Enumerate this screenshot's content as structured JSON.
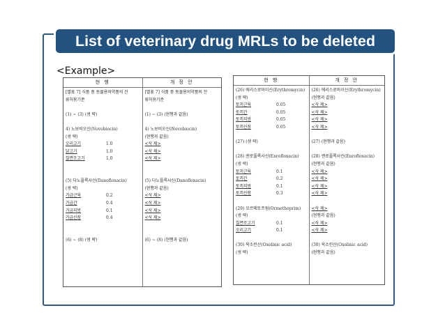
{
  "title": "List of veterinary drug MRLs to be deleted",
  "example_label": "<Example>",
  "colors": {
    "title_bg": "#22527f",
    "frame": "#2e5a88"
  },
  "documents": [
    {
      "headers": [
        "현 행",
        "개 정 안"
      ],
      "left": [
        {
          "t": "[별표 7] 식품 중 동물용의약품의 잔",
          "ul": false
        },
        {
          "t": "류허용기준",
          "ul": false
        },
        {
          "t": "",
          "ul": false
        },
        {
          "t": "(1) ~ (3) (생  략)",
          "ul": false
        },
        {
          "t": "",
          "ul": false
        },
        {
          "t": "4) 노보비오신(Novobiocin)",
          "ul": false
        },
        {
          "t": "(생  략)",
          "ul": false
        },
        {
          "t": "오리고기",
          "v": "1.0",
          "ul": true
        },
        {
          "t": "닭고기",
          "v": "1.0",
          "ul": true
        },
        {
          "t": "칠면조고기",
          "v": "1.0",
          "ul": true
        },
        {
          "t": "",
          "ul": false
        },
        {
          "t": "",
          "ul": false
        },
        {
          "t": "(5) 다노플록사신(Danofloxacin)",
          "ul": false
        },
        {
          "t": "(생  략)",
          "ul": false
        },
        {
          "t": "가금근육",
          "v": "0.2",
          "ul": true
        },
        {
          "t": "가금간",
          "v": "0.4",
          "ul": true
        },
        {
          "t": "가금지방",
          "v": "0.1",
          "ul": true
        },
        {
          "t": "가금신장",
          "v": "0.4",
          "ul": true
        },
        {
          "t": "",
          "ul": false
        },
        {
          "t": "",
          "ul": false
        },
        {
          "t": "(6) ~ (8) (생  략)",
          "ul": false
        }
      ],
      "right": [
        {
          "t": "[별표 7] 식품 중 동물용의약품의 잔",
          "ul": false
        },
        {
          "t": "류허용기준",
          "ul": false
        },
        {
          "t": "",
          "ul": false
        },
        {
          "t": "(1) ~ (3) (현행과 같음)",
          "ul": false
        },
        {
          "t": "",
          "ul": false
        },
        {
          "t": "4) 노보비오신(Novobiocin)",
          "ul": false
        },
        {
          "t": "(현행과 같음)",
          "ul": false
        },
        {
          "t": "<삭  제>",
          "ul": true
        },
        {
          "t": "<삭  제>",
          "ul": true
        },
        {
          "t": "<삭  제>",
          "ul": true
        },
        {
          "t": "",
          "ul": false
        },
        {
          "t": "",
          "ul": false
        },
        {
          "t": "(5) 다노플록사신(Danofloxacin)",
          "ul": false
        },
        {
          "t": "(현행과 같음)",
          "ul": false
        },
        {
          "t": "<삭  제>",
          "ul": true
        },
        {
          "t": "<삭  제>",
          "ul": true
        },
        {
          "t": "<삭  제>",
          "ul": true
        },
        {
          "t": "<삭  제>",
          "ul": true
        },
        {
          "t": "",
          "ul": false
        },
        {
          "t": "",
          "ul": false
        },
        {
          "t": "(6) ~ (8) (현행과 같음)",
          "ul": false
        }
      ]
    },
    {
      "headers": [
        "현 행",
        "개 정 안"
      ],
      "left": [
        {
          "t": "(26) 에리스로마이신(Erythromycin)",
          "ul": false
        },
        {
          "t": "(생  략)",
          "ul": false
        },
        {
          "t": "토끼근육",
          "v": "0.05",
          "ul": true
        },
        {
          "t": "토끼간",
          "v": "0.05",
          "ul": true
        },
        {
          "t": "토끼지방",
          "v": "0.05",
          "ul": true
        },
        {
          "t": "토끼신장",
          "v": "0.05",
          "ul": true
        },
        {
          "t": "",
          "ul": false
        },
        {
          "t": "(27) (생  략)",
          "ul": false
        },
        {
          "t": "",
          "ul": false
        },
        {
          "t": "(28) 엔로플록사신(Enrofloxacin)",
          "ul": false
        },
        {
          "t": "(생  략)",
          "ul": false
        },
        {
          "t": "토끼근육",
          "v": "0.1",
          "ul": true
        },
        {
          "t": "토끼간",
          "v": "0.2",
          "ul": true
        },
        {
          "t": "토끼지방",
          "v": "0.1",
          "ul": true
        },
        {
          "t": "토끼신장",
          "v": "0.3",
          "ul": true
        },
        {
          "t": "",
          "ul": false
        },
        {
          "t": "(29) 오르메토프림(Ormethoprim)",
          "ul": false
        },
        {
          "t": "(생  략)",
          "ul": false
        },
        {
          "t": "칠면조고기",
          "v": "0.1",
          "ul": true
        },
        {
          "t": "오리고기",
          "v": "0.1",
          "ul": true
        },
        {
          "t": "",
          "ul": false
        },
        {
          "t": "(30) 옥소린산(Oxolinic acid)",
          "ul": false
        },
        {
          "t": "(생  략)",
          "ul": false
        }
      ],
      "right": [
        {
          "t": "(26) 에리스로마이신(Erythromycin)",
          "ul": false
        },
        {
          "t": "(현행과 같음)",
          "ul": false
        },
        {
          "t": "<삭  제>",
          "ul": true
        },
        {
          "t": "<삭  제>",
          "ul": true
        },
        {
          "t": "<삭  제>",
          "ul": true
        },
        {
          "t": "<삭  제>",
          "ul": true
        },
        {
          "t": "",
          "ul": false
        },
        {
          "t": "(27) (현행과 같음)",
          "ul": false
        },
        {
          "t": "",
          "ul": false
        },
        {
          "t": "(28) 엔로플록사신(Enrofloxacin)",
          "ul": false
        },
        {
          "t": "(현행과 같음)",
          "ul": false
        },
        {
          "t": "<삭  제>",
          "ul": true
        },
        {
          "t": "<삭  제>",
          "ul": true
        },
        {
          "t": "<삭  제>",
          "ul": true
        },
        {
          "t": "<삭  제>",
          "ul": true
        },
        {
          "t": "",
          "ul": false
        },
        {
          "t": "<삭  제>",
          "ul": true
        },
        {
          "t": "(현행과 같음)",
          "ul": false
        },
        {
          "t": "<삭  제>",
          "ul": true
        },
        {
          "t": "<삭  제>",
          "ul": true
        },
        {
          "t": "",
          "ul": false
        },
        {
          "t": "(30) 옥소린산(Oxolinic acid)",
          "ul": false
        },
        {
          "t": "(현행과 같음)",
          "ul": false
        }
      ]
    }
  ]
}
